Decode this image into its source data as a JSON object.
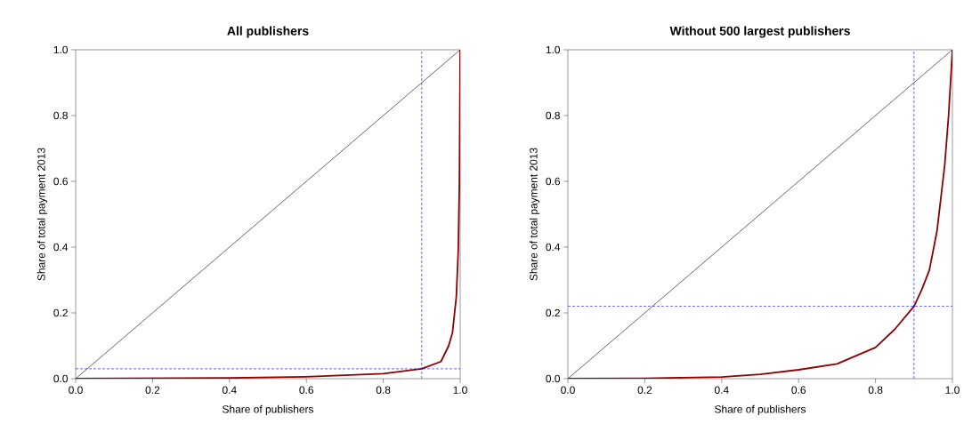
{
  "chart_data": [
    {
      "type": "line",
      "title": "All publishers",
      "xlabel": "Share of publishers",
      "ylabel": "Share of total payment 2013",
      "xlim": [
        0,
        1
      ],
      "ylim": [
        0,
        1
      ],
      "xticks": [
        {
          "value": 0,
          "label": "0.0"
        },
        {
          "value": 0.2,
          "label": "0.2"
        },
        {
          "value": 0.4,
          "label": "0.4"
        },
        {
          "value": 0.6,
          "label": "0.6"
        },
        {
          "value": 0.8,
          "label": "0.8"
        },
        {
          "value": 1,
          "label": "1.0"
        }
      ],
      "yticks": [
        {
          "value": 0,
          "label": "0.0"
        },
        {
          "value": 0.2,
          "label": "0.2"
        },
        {
          "value": 0.4,
          "label": "0.4"
        },
        {
          "value": 0.6,
          "label": "0.6"
        },
        {
          "value": 0.8,
          "label": "0.8"
        },
        {
          "value": 1,
          "label": "1.0"
        }
      ],
      "series": [
        {
          "color": "#000000",
          "x": [
            0,
            1
          ],
          "values": [
            0,
            1
          ]
        },
        {
          "color": "#8b0000",
          "x": [
            0,
            0.2,
            0.4,
            0.6,
            0.8,
            0.9,
            0.95,
            0.97,
            0.98,
            0.99,
            0.995,
            0.998,
            1.0
          ],
          "values": [
            0,
            0.001,
            0.002,
            0.006,
            0.015,
            0.03,
            0.052,
            0.1,
            0.14,
            0.25,
            0.39,
            0.6,
            1.0
          ]
        }
      ],
      "ref_lines": [
        {
          "axis": "x",
          "value": 0.9,
          "color": "#0000ff",
          "line_style": "dashed"
        },
        {
          "axis": "y",
          "value": 0.03,
          "color": "#0000ff",
          "line_style": "dashed"
        }
      ]
    },
    {
      "type": "line",
      "title": "Without 500 largest publishers",
      "xlabel": "Share of publishers",
      "ylabel": "Share of total payment 2013",
      "xlim": [
        0,
        1
      ],
      "ylim": [
        0,
        1
      ],
      "xticks": [
        {
          "value": 0,
          "label": "0.0"
        },
        {
          "value": 0.2,
          "label": "0.2"
        },
        {
          "value": 0.4,
          "label": "0.4"
        },
        {
          "value": 0.6,
          "label": "0.6"
        },
        {
          "value": 0.8,
          "label": "0.8"
        },
        {
          "value": 1,
          "label": "1.0"
        }
      ],
      "yticks": [
        {
          "value": 0,
          "label": "0.0"
        },
        {
          "value": 0.2,
          "label": "0.2"
        },
        {
          "value": 0.4,
          "label": "0.4"
        },
        {
          "value": 0.6,
          "label": "0.6"
        },
        {
          "value": 0.8,
          "label": "0.8"
        },
        {
          "value": 1,
          "label": "1.0"
        }
      ],
      "series": [
        {
          "color": "#000000",
          "x": [
            0,
            1
          ],
          "values": [
            0,
            1
          ]
        },
        {
          "color": "#8b0000",
          "x": [
            0,
            0.2,
            0.3,
            0.4,
            0.5,
            0.6,
            0.7,
            0.8,
            0.85,
            0.9,
            0.92,
            0.94,
            0.96,
            0.98,
            0.99,
            1.0
          ],
          "values": [
            0,
            0.001,
            0.003,
            0.005,
            0.013,
            0.027,
            0.045,
            0.095,
            0.15,
            0.22,
            0.27,
            0.33,
            0.45,
            0.65,
            0.8,
            1.0
          ]
        }
      ],
      "ref_lines": [
        {
          "axis": "x",
          "value": 0.9,
          "color": "#0000ff",
          "line_style": "dashed"
        },
        {
          "axis": "y",
          "value": 0.22,
          "color": "#0000ff",
          "line_style": "dashed"
        }
      ]
    }
  ]
}
